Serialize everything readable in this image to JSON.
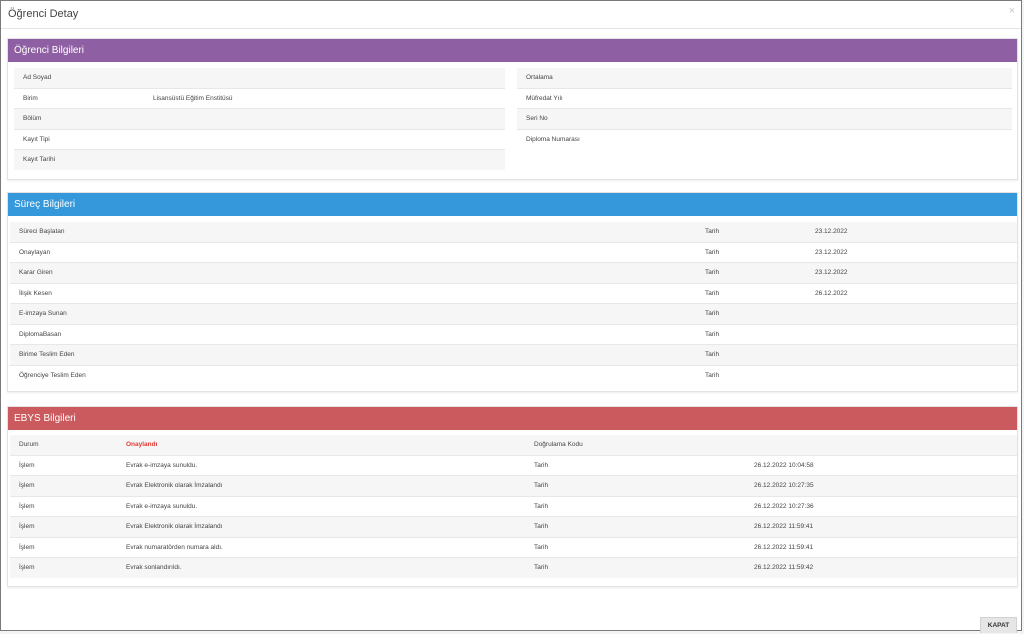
{
  "modal": {
    "title": "Öğrenci Detay",
    "close_symbol": "×"
  },
  "ogrenci": {
    "heading": "Öğrenci Bilgileri",
    "left": [
      {
        "label": "Ad Soyad",
        "value": ""
      },
      {
        "label": "Birim",
        "value": "Lisansüstü Eğitim Enstitüsü"
      },
      {
        "label": "Bölüm",
        "value": ""
      },
      {
        "label": "Kayıt Tipi",
        "value": ""
      },
      {
        "label": "Kayıt Tarihi",
        "value": ""
      }
    ],
    "right": [
      {
        "label": "Ortalama",
        "value": ""
      },
      {
        "label": "Müfredat Yılı",
        "value": ""
      },
      {
        "label": "Seri No",
        "value": ""
      },
      {
        "label": "Diploma Numarası",
        "value": ""
      }
    ]
  },
  "surec": {
    "heading": "Süreç Bilgileri",
    "rows": [
      {
        "label": "Süreci Başlatan",
        "value": "",
        "date_label": "Tarih",
        "date": "23.12.2022"
      },
      {
        "label": "Onaylayan",
        "value": "",
        "date_label": "Tarih",
        "date": "23.12.2022"
      },
      {
        "label": "Karar Giren",
        "value": "",
        "date_label": "Tarih",
        "date": "23.12.2022"
      },
      {
        "label": "İlişik Kesen",
        "value": "",
        "date_label": "Tarih",
        "date": "26.12.2022"
      },
      {
        "label": "E-imzaya Sunan",
        "value": "",
        "date_label": "Tarih",
        "date": ""
      },
      {
        "label": "DiplomaBasan",
        "value": "",
        "date_label": "Tarih",
        "date": ""
      },
      {
        "label": "Birime Teslim Eden",
        "value": "",
        "date_label": "Tarih",
        "date": ""
      },
      {
        "label": "Öğrenciye Teslim Eden",
        "value": "",
        "date_label": "Tarih",
        "date": ""
      }
    ]
  },
  "ebys": {
    "heading": "EBYS Bilgileri",
    "status_row": {
      "label": "Durum",
      "value": "Onaylandı",
      "code_label": "Doğrulama Kodu",
      "code": ""
    },
    "status_color": "#e53935",
    "rows": [
      {
        "label": "İşlem",
        "value": "Evrak e-imzaya sunuldu.",
        "date_label": "Tarih",
        "date": "26.12.2022 10:04:58"
      },
      {
        "label": "İşlem",
        "value": "Evrak Elektronik olarak İmzalandı",
        "date_label": "Tarih",
        "date": "26.12.2022 10:27:35"
      },
      {
        "label": "İşlem",
        "value": "Evrak e-imzaya sunuldu.",
        "date_label": "Tarih",
        "date": "26.12.2022 10:27:36"
      },
      {
        "label": "İşlem",
        "value": "Evrak Elektronik olarak İmzalandı",
        "date_label": "Tarih",
        "date": "26.12.2022 11:59:41"
      },
      {
        "label": "İşlem",
        "value": "Evrak numaratörden numara aldı.",
        "date_label": "Tarih",
        "date": "26.12.2022 11:59:41"
      },
      {
        "label": "İşlem",
        "value": "Evrak sonlandırıldı.",
        "date_label": "Tarih",
        "date": "26.12.2022 11:59:42"
      }
    ]
  },
  "footer": {
    "close_label": "KAPAT"
  },
  "colors": {
    "purple": "#8e5fa2",
    "blue": "#3498db",
    "red": "#cb5a5e"
  }
}
